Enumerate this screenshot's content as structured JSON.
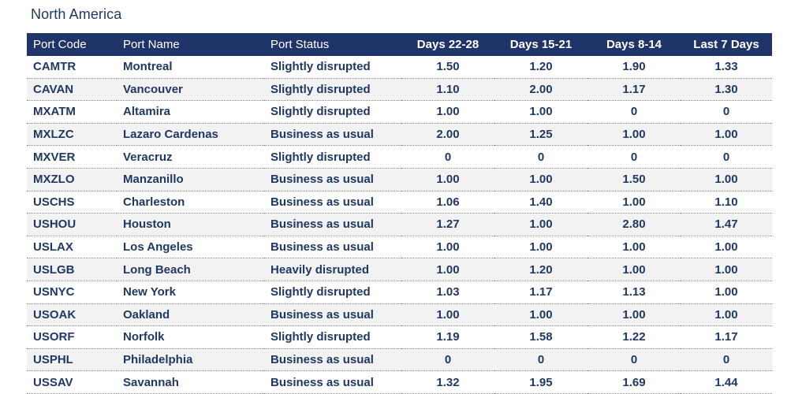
{
  "region": "North America",
  "columns": {
    "port_code": "Port Code",
    "port_name": "Port Name",
    "port_status": "Port Status",
    "days_22_28": "Days 22-28",
    "days_15_21": "Days 15-21",
    "days_8_14": "Days 8-14",
    "last_7_days": "Last 7 Days"
  },
  "rows": [
    {
      "code": "CAMTR",
      "name": "Montreal",
      "status": "Slightly disrupted",
      "d22_28": "1.50",
      "d15_21": "1.20",
      "d8_14": "1.90",
      "last7": "1.33"
    },
    {
      "code": "CAVAN",
      "name": "Vancouver",
      "status": "Slightly disrupted",
      "d22_28": "1.10",
      "d15_21": "2.00",
      "d8_14": "1.17",
      "last7": "1.30"
    },
    {
      "code": "MXATM",
      "name": "Altamira",
      "status": "Slightly disrupted",
      "d22_28": "1.00",
      "d15_21": "1.00",
      "d8_14": "0",
      "last7": "0"
    },
    {
      "code": "MXLZC",
      "name": "Lazaro Cardenas",
      "status": "Business as usual",
      "d22_28": "2.00",
      "d15_21": "1.25",
      "d8_14": "1.00",
      "last7": "1.00"
    },
    {
      "code": "MXVER",
      "name": "Veracruz",
      "status": "Slightly disrupted",
      "d22_28": "0",
      "d15_21": "0",
      "d8_14": "0",
      "last7": "0"
    },
    {
      "code": "MXZLO",
      "name": "Manzanillo",
      "status": "Business as usual",
      "d22_28": "1.00",
      "d15_21": "1.00",
      "d8_14": "1.50",
      "last7": "1.00"
    },
    {
      "code": "USCHS",
      "name": "Charleston",
      "status": "Business as usual",
      "d22_28": "1.06",
      "d15_21": "1.40",
      "d8_14": "1.00",
      "last7": "1.10"
    },
    {
      "code": "USHOU",
      "name": "Houston",
      "status": "Business as usual",
      "d22_28": "1.27",
      "d15_21": "1.00",
      "d8_14": "2.80",
      "last7": "1.47"
    },
    {
      "code": "USLAX",
      "name": "Los Angeles",
      "status": "Business as usual",
      "d22_28": "1.00",
      "d15_21": "1.00",
      "d8_14": "1.00",
      "last7": "1.00"
    },
    {
      "code": "USLGB",
      "name": "Long Beach",
      "status": "Heavily disrupted",
      "d22_28": "1.00",
      "d15_21": "1.20",
      "d8_14": "1.00",
      "last7": "1.00"
    },
    {
      "code": "USNYC",
      "name": "New York",
      "status": "Slightly disrupted",
      "d22_28": "1.03",
      "d15_21": "1.17",
      "d8_14": "1.13",
      "last7": "1.00"
    },
    {
      "code": "USOAK",
      "name": "Oakland",
      "status": "Business as usual",
      "d22_28": "1.00",
      "d15_21": "1.00",
      "d8_14": "1.00",
      "last7": "1.00"
    },
    {
      "code": "USORF",
      "name": "Norfolk",
      "status": "Slightly disrupted",
      "d22_28": "1.19",
      "d15_21": "1.58",
      "d8_14": "1.22",
      "last7": "1.17"
    },
    {
      "code": "USPHL",
      "name": "Philadelphia",
      "status": "Business as usual",
      "d22_28": "0",
      "d15_21": "0",
      "d8_14": "0",
      "last7": "0"
    },
    {
      "code": "USSAV",
      "name": "Savannah",
      "status": "Business as usual",
      "d22_28": "1.32",
      "d15_21": "1.95",
      "d8_14": "1.69",
      "last7": "1.44"
    }
  ],
  "colors": {
    "header_bg": "#1f3468",
    "text": "#1f3864",
    "stripe": "#f2f2f2"
  }
}
